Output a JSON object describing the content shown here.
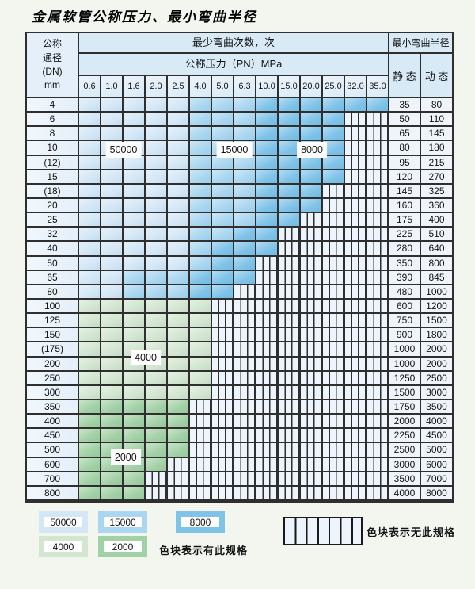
{
  "title": "金属软管公称压力、最小弯曲半径",
  "header": {
    "dn_lines": [
      "公称",
      "通径",
      "(DN)",
      "mm"
    ],
    "bend_cycles": "最少弯曲次数，次",
    "pressure_title": "公称压力（PN）MPa",
    "radius_title": "最小弯曲半径",
    "static_label": "静 态",
    "dynamic_label": "动 态"
  },
  "chart_data": {
    "type": "heatmap",
    "title": "金属软管公称压力、最小弯曲半径",
    "xlabel": "公称压力（PN）MPa",
    "ylabel": "公称通径 (DN) mm",
    "pn_col_labels": [
      "0.6",
      "1.0",
      "1.6",
      "2.0",
      "2.5",
      "4.0",
      "5.0",
      "6.3",
      "10.0",
      "15.0",
      "20.0",
      "25.0",
      "32.0",
      "35.0"
    ],
    "zone_meaning": {
      "L": "50000次",
      "M": "15000次",
      "D": "8000次",
      "G": "4000次",
      "g": "2000次",
      "X": "无此规格"
    },
    "rows": [
      {
        "dn": "4",
        "cells": "LLLLLMMMDDDDDD",
        "st": "35",
        "dy": "80"
      },
      {
        "dn": "6",
        "cells": "LLLLLMMMDDDDXX",
        "st": "50",
        "dy": "110"
      },
      {
        "dn": "8",
        "cells": "LLLLLMMMDDDDXX",
        "st": "65",
        "dy": "145"
      },
      {
        "dn": "10",
        "cells": "LLLLLMMMDDDDXX",
        "st": "80",
        "dy": "180"
      },
      {
        "dn": "(12)",
        "cells": "LLLLLMMMDDDDXX",
        "st": "95",
        "dy": "215"
      },
      {
        "dn": "15",
        "cells": "LLLLLMMMDDDDXX",
        "st": "120",
        "dy": "270"
      },
      {
        "dn": "(18)",
        "cells": "LLLLLMMMDDDXXX",
        "st": "145",
        "dy": "325"
      },
      {
        "dn": "20",
        "cells": "LLLLLMMMDDDXXX",
        "st": "160",
        "dy": "360"
      },
      {
        "dn": "25",
        "cells": "LLLLLMMMDDXXXX",
        "st": "175",
        "dy": "400"
      },
      {
        "dn": "32",
        "cells": "LLLLLMMDDXXXXX",
        "st": "225",
        "dy": "510"
      },
      {
        "dn": "40",
        "cells": "LLLLLMDDDXXXXX",
        "st": "280",
        "dy": "640"
      },
      {
        "dn": "50",
        "cells": "LLLLLMDDXXXXXX",
        "st": "350",
        "dy": "800"
      },
      {
        "dn": "65",
        "cells": "LLMMMDDDXXXXXX",
        "st": "390",
        "dy": "845"
      },
      {
        "dn": "80",
        "cells": "LLMMMDDXXXXXXX",
        "st": "480",
        "dy": "1000"
      },
      {
        "dn": "100",
        "cells": "GGGGGGXXXXXXXX",
        "st": "600",
        "dy": "1200"
      },
      {
        "dn": "125",
        "cells": "GGGGGGXXXXXXXX",
        "st": "750",
        "dy": "1500"
      },
      {
        "dn": "150",
        "cells": "GGGGGGXXXXXXXX",
        "st": "900",
        "dy": "1800"
      },
      {
        "dn": "(175)",
        "cells": "GGGGGGXXXXXXXX",
        "st": "1000",
        "dy": "2000"
      },
      {
        "dn": "200",
        "cells": "GGGGGGXXXXXXXX",
        "st": "1000",
        "dy": "2000"
      },
      {
        "dn": "250",
        "cells": "GGGGGGXXXXXXXX",
        "st": "1250",
        "dy": "2500"
      },
      {
        "dn": "300",
        "cells": "GGGGGGXXXXXXXX",
        "st": "1500",
        "dy": "3000"
      },
      {
        "dn": "350",
        "cells": "gggggXXXXXXXXX",
        "st": "1750",
        "dy": "3500"
      },
      {
        "dn": "400",
        "cells": "gggggXXXXXXXXX",
        "st": "2000",
        "dy": "4000"
      },
      {
        "dn": "450",
        "cells": "gggggXXXXXXXXX",
        "st": "2250",
        "dy": "4500"
      },
      {
        "dn": "500",
        "cells": "gggggXXXXXXXXX",
        "st": "2500",
        "dy": "5000"
      },
      {
        "dn": "600",
        "cells": "ggggXXXXXXXXXX",
        "st": "3000",
        "dy": "6000"
      },
      {
        "dn": "700",
        "cells": "gggXXXXXXXXXXX",
        "st": "3500",
        "dy": "7000"
      },
      {
        "dn": "800",
        "cells": "gggXXXXXXXXXXX",
        "st": "4000",
        "dy": "8000"
      }
    ],
    "zone_labels": [
      {
        "text": "50000",
        "col": 2.0,
        "row": 3.57
      },
      {
        "text": "15000",
        "col": 7.0,
        "row": 3.57
      },
      {
        "text": "8000",
        "col": 10.5,
        "row": 3.57
      },
      {
        "text": "4000",
        "col": 3.0,
        "row": 18.05
      },
      {
        "text": "2000",
        "col": 2.1,
        "row": 24.95
      }
    ]
  },
  "legend": {
    "items": [
      {
        "value": "50000",
        "key": "L"
      },
      {
        "value": "15000",
        "key": "M"
      },
      {
        "value": "8000",
        "key": "D"
      },
      {
        "value": "4000",
        "key": "G"
      },
      {
        "value": "2000",
        "key": "g"
      }
    ],
    "has_spec_note": "色块表示有此规格",
    "no_spec_note": "色块表示无此规格"
  },
  "colors": {
    "light_blue_50000": "#d3e7f6",
    "mid_blue_15000": "#a9d6f0",
    "dark_blue_8000": "#7fc3e9",
    "light_green_4000": "#d2e6d0",
    "mid_green_2000": "#a2d1a5",
    "hatch_bg": "#edf4fb",
    "grid_line": "#2f2f2f",
    "header_bg": "#d9eaf7",
    "dn_col_bg": "#e4effa",
    "value_col_bg": "#eef4fa",
    "page_bg": "#f3f5ef"
  }
}
